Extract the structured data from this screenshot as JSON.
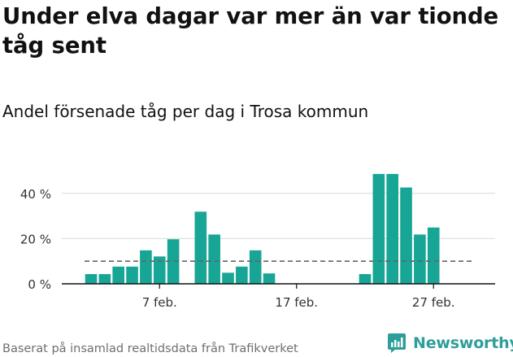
{
  "title": "Under elva dagar var mer än var tionde tåg sent",
  "subtitle": "Andel försenade tåg per dag i Trosa kommun",
  "source": "Baserat på insamlad realtidsdata från Trafikverket",
  "brand": {
    "name": "Newsworthy",
    "icon": "newsworthy-logo-icon",
    "color": "#2e9e9a"
  },
  "colors": {
    "bar": "#17a595",
    "grid": "#d9d9d9",
    "reference": "#666666",
    "axis": "#111111"
  },
  "chart_data": {
    "type": "bar",
    "x_start_day": 2,
    "x_end_day": 29,
    "x_ticks": [
      {
        "day": 7,
        "label": "7 feb."
      },
      {
        "day": 17,
        "label": "17 feb."
      },
      {
        "day": 27,
        "label": "27 feb."
      }
    ],
    "y_ticks": [
      {
        "value": 0,
        "label": "0 %"
      },
      {
        "value": 20,
        "label": "20 %"
      },
      {
        "value": 40,
        "label": "40 %"
      }
    ],
    "ylim": [
      0,
      50
    ],
    "reference_line": 10,
    "series": [
      {
        "days": [
          2,
          3,
          4,
          5,
          6,
          7,
          8,
          9,
          10,
          11,
          12,
          13,
          14,
          15,
          16,
          17,
          18,
          19,
          20,
          21,
          22,
          23,
          24,
          25,
          26,
          27,
          28
        ],
        "values": [
          4.3,
          4.3,
          7.6,
          7.6,
          14.8,
          12.1,
          19.7,
          null,
          31.9,
          21.8,
          4.9,
          7.6,
          14.8,
          4.6,
          null,
          null,
          null,
          null,
          null,
          null,
          4.3,
          48.6,
          48.6,
          42.6,
          21.8,
          24.9,
          null
        ]
      }
    ]
  }
}
